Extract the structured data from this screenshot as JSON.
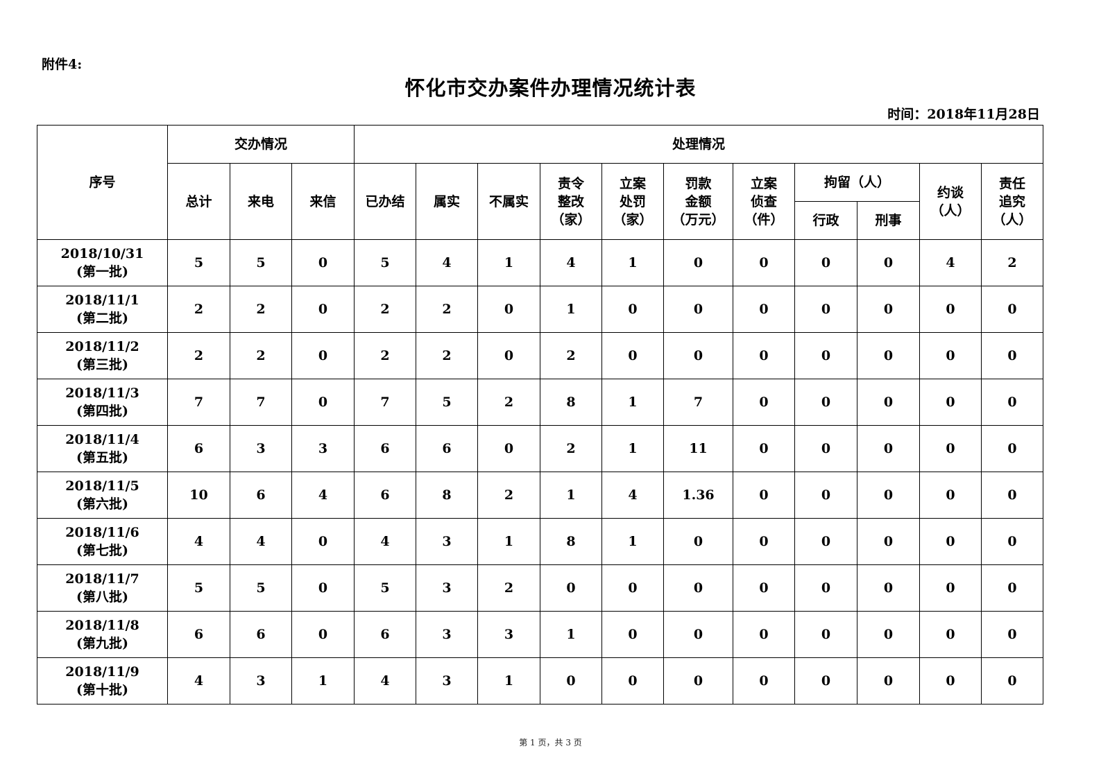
{
  "attachment_label": "附件4:",
  "title": "怀化市交办案件办理情况统计表",
  "date_label": "时间：2018年11月28日",
  "header": {
    "seq": "序号",
    "group_assigned": "交办情况",
    "group_handled": "处理情况",
    "total": "总计",
    "phone": "来电",
    "letter": "来信",
    "closed": "已办结",
    "verified": "属实",
    "not_verified": "不属实",
    "rectify": "责令\n整改\n（家）",
    "penalty": "立案\n处罚\n（家）",
    "fine": "罚款\n金额\n（万元）",
    "investigate": "立案\n侦查\n（件）",
    "detain": "拘留（人）",
    "detain_admin": "行政",
    "detain_criminal": "刑事",
    "interview": "约谈\n（人）",
    "accountability": "责任\n追究\n（人）"
  },
  "rows": [
    {
      "date": "2018/10/31",
      "batch": "(第一批)",
      "values": [
        "5",
        "5",
        "0",
        "5",
        "4",
        "1",
        "4",
        "1",
        "0",
        "0",
        "0",
        "0",
        "4",
        "2"
      ]
    },
    {
      "date": "2018/11/1",
      "batch": "(第二批)",
      "values": [
        "2",
        "2",
        "0",
        "2",
        "2",
        "0",
        "1",
        "0",
        "0",
        "0",
        "0",
        "0",
        "0",
        "0"
      ]
    },
    {
      "date": "2018/11/2",
      "batch": "(第三批)",
      "values": [
        "2",
        "2",
        "0",
        "2",
        "2",
        "0",
        "2",
        "0",
        "0",
        "0",
        "0",
        "0",
        "0",
        "0"
      ]
    },
    {
      "date": "2018/11/3",
      "batch": "(第四批)",
      "values": [
        "7",
        "7",
        "0",
        "7",
        "5",
        "2",
        "8",
        "1",
        "7",
        "0",
        "0",
        "0",
        "0",
        "0"
      ]
    },
    {
      "date": "2018/11/4",
      "batch": "(第五批)",
      "values": [
        "6",
        "3",
        "3",
        "6",
        "6",
        "0",
        "2",
        "1",
        "11",
        "0",
        "0",
        "0",
        "0",
        "0"
      ]
    },
    {
      "date": "2018/11/5",
      "batch": "(第六批)",
      "values": [
        "10",
        "6",
        "4",
        "6",
        "8",
        "2",
        "1",
        "4",
        "1.36",
        "0",
        "0",
        "0",
        "0",
        "0"
      ]
    },
    {
      "date": "2018/11/6",
      "batch": "(第七批)",
      "values": [
        "4",
        "4",
        "0",
        "4",
        "3",
        "1",
        "8",
        "1",
        "0",
        "0",
        "0",
        "0",
        "0",
        "0"
      ]
    },
    {
      "date": "2018/11/7",
      "batch": "(第八批)",
      "values": [
        "5",
        "5",
        "0",
        "5",
        "3",
        "2",
        "0",
        "0",
        "0",
        "0",
        "0",
        "0",
        "0",
        "0"
      ]
    },
    {
      "date": "2018/11/8",
      "batch": "(第九批)",
      "values": [
        "6",
        "6",
        "0",
        "6",
        "3",
        "3",
        "1",
        "0",
        "0",
        "0",
        "0",
        "0",
        "0",
        "0"
      ]
    },
    {
      "date": "2018/11/9",
      "batch": "(第十批)",
      "values": [
        "4",
        "3",
        "1",
        "4",
        "3",
        "1",
        "0",
        "0",
        "0",
        "0",
        "0",
        "0",
        "0",
        "0"
      ]
    }
  ],
  "footer": "第 1 页，共 3 页"
}
